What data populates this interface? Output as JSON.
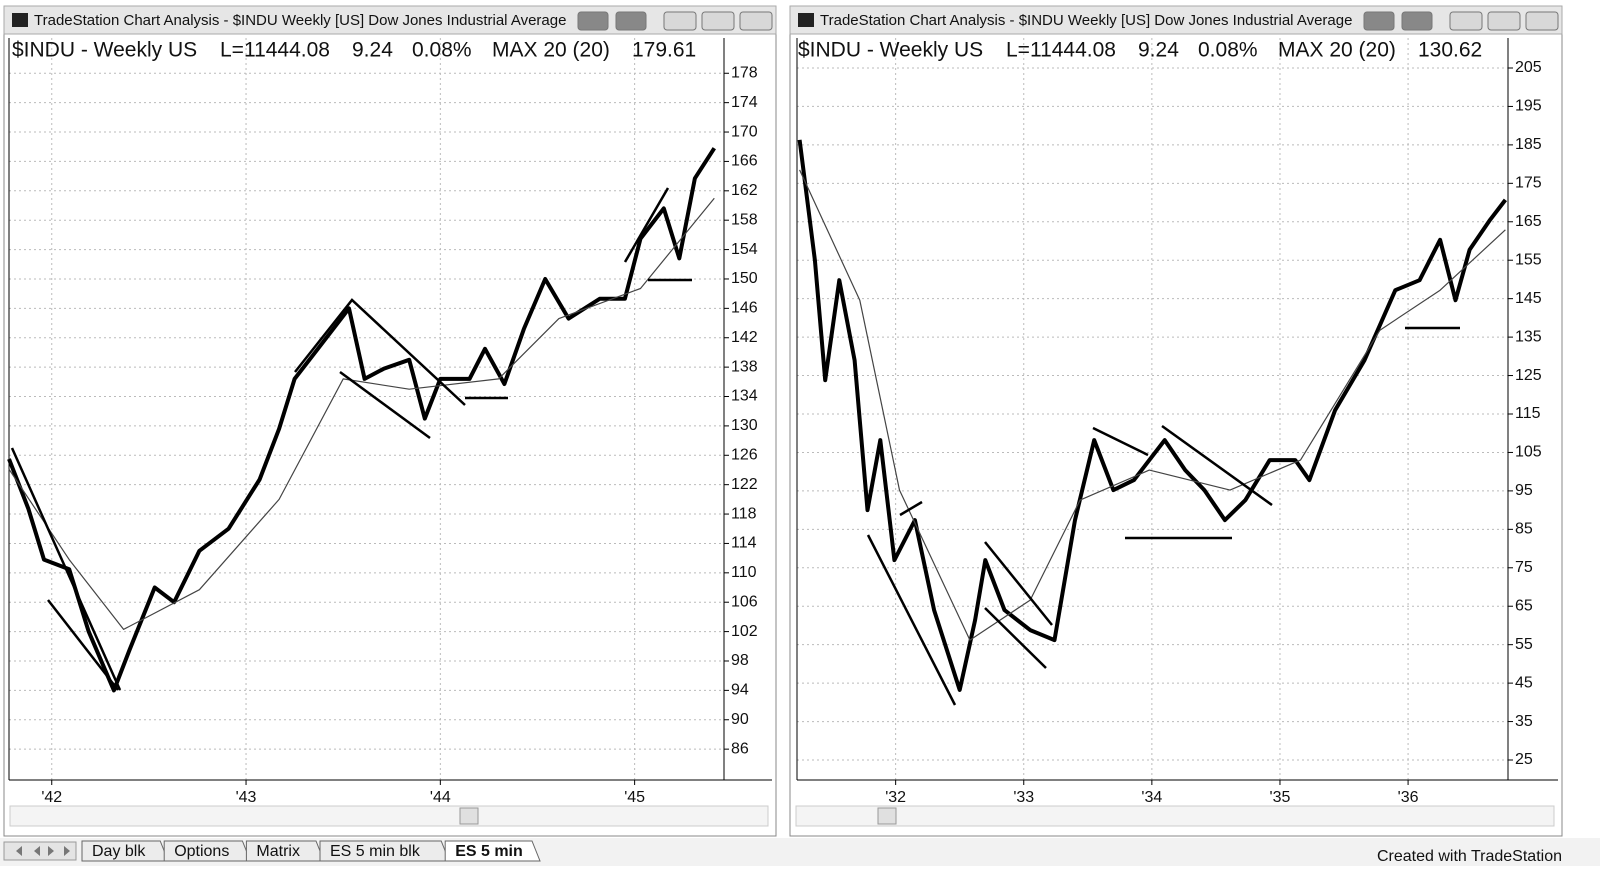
{
  "windows": [
    {
      "title": "TradeStation Chart Analysis - $INDU Weekly [US] Dow Jones Industrial Average",
      "header": {
        "symbol": "$INDU - Weekly US",
        "last": "L=11444.08",
        "change": "9.24",
        "percent": "0.08%",
        "indicator": "MAX 20 (20)",
        "indicator_value": "179.61"
      }
    },
    {
      "title": "TradeStation Chart Analysis - $INDU Weekly [US] Dow Jones Industrial Average",
      "header": {
        "symbol": "$INDU - Weekly US",
        "last": "L=11444.08",
        "change": "9.24",
        "percent": "0.08%",
        "indicator": "MAX 20 (20)",
        "indicator_value": "130.62"
      }
    }
  ],
  "chart_data": [
    {
      "type": "line",
      "xlim": [
        1941.78,
        1945.46
      ],
      "ylim": [
        81.8,
        182.8
      ],
      "xticks": [
        {
          "value": 1942,
          "label": "'42"
        },
        {
          "value": 1943,
          "label": "'43"
        },
        {
          "value": 1944,
          "label": "'44"
        },
        {
          "value": 1945,
          "label": "'45"
        }
      ],
      "yticks": [
        86,
        90,
        94,
        98,
        102,
        106,
        110,
        114,
        118,
        122,
        126,
        130,
        134,
        138,
        142,
        146,
        150,
        154,
        158,
        162,
        166,
        170,
        174,
        178
      ],
      "grid": true,
      "series": [
        {
          "color": "#000000",
          "x": [
            1941.78,
            1941.88,
            1941.96,
            1942.09,
            1942.19,
            1942.32,
            1942.4,
            1942.53,
            1942.63,
            1942.76,
            1942.91,
            1943.07,
            1943.17,
            1943.25,
            1943.37,
            1943.53,
            1943.61,
            1943.71,
            1943.84,
            1943.92,
            1944.0,
            1944.15,
            1944.23,
            1944.33,
            1944.43,
            1944.54,
            1944.66,
            1944.82,
            1944.95,
            1945.03,
            1945.15,
            1945.23,
            1945.31,
            1945.41
          ],
          "values": [
            125.5,
            118.7,
            111.8,
            110.5,
            102,
            94,
            99.5,
            108,
            106,
            113,
            116,
            122.7,
            129.6,
            136.4,
            140.5,
            146,
            136.4,
            137.8,
            139,
            131,
            136.4,
            136.4,
            140.5,
            135.7,
            143.2,
            150,
            144.6,
            147.3,
            147.3,
            155.5,
            159.6,
            152.8,
            163.7,
            167.8
          ]
        },
        {
          "color": "#444444",
          "x": [
            1941.78,
            1942.09,
            1942.37,
            1942.76,
            1943.17,
            1943.5,
            1943.84,
            1944.3,
            1944.61,
            1945.03,
            1945.41
          ],
          "values": [
            124.1,
            111.8,
            102.3,
            107.7,
            120,
            136.4,
            135,
            136.4,
            144.6,
            148.7,
            161
          ]
        }
      ]
    },
    {
      "type": "line",
      "xlim": [
        1931.23,
        1936.78
      ],
      "ylim": [
        19.8,
        212.8
      ],
      "xticks": [
        {
          "value": 1932,
          "label": "'32"
        },
        {
          "value": 1933,
          "label": "'33"
        },
        {
          "value": 1934,
          "label": "'34"
        },
        {
          "value": 1935,
          "label": "'35"
        },
        {
          "value": 1936,
          "label": "'36"
        }
      ],
      "yticks": [
        25,
        35,
        45,
        55,
        65,
        75,
        85,
        95,
        105,
        115,
        125,
        135,
        145,
        155,
        165,
        175,
        185,
        195,
        205
      ],
      "grid": true,
      "series": [
        {
          "color": "#000000",
          "x": [
            1931.25,
            1931.37,
            1931.45,
            1931.56,
            1931.68,
            1931.78,
            1931.88,
            1931.99,
            1932.15,
            1932.3,
            1932.5,
            1932.62,
            1932.7,
            1932.85,
            1933.05,
            1933.24,
            1933.4,
            1933.55,
            1933.7,
            1933.86,
            1934.1,
            1934.26,
            1934.41,
            1934.57,
            1934.73,
            1934.92,
            1935.12,
            1935.23,
            1935.43,
            1935.66,
            1935.9,
            1936.09,
            1936.25,
            1936.37,
            1936.48,
            1936.64,
            1936.76
          ],
          "values": [
            186.3,
            155,
            123.8,
            149.8,
            129,
            90,
            108.2,
            77,
            87.4,
            64,
            43.2,
            61.4,
            77,
            64,
            58.8,
            56.2,
            87.4,
            108.2,
            95.2,
            97.8,
            108.2,
            100.4,
            95.2,
            87.4,
            92.6,
            103,
            103,
            97.8,
            116,
            129,
            147.2,
            149.8,
            160.3,
            144.6,
            157.7,
            165.5,
            170.7
          ]
        },
        {
          "color": "#444444",
          "x": [
            1931.25,
            1931.72,
            1932.03,
            1932.58,
            1933.05,
            1933.44,
            1933.98,
            1934.61,
            1935.16,
            1935.78,
            1936.25,
            1936.76
          ],
          "values": [
            178.5,
            144.6,
            95.2,
            56.2,
            66.6,
            92.6,
            100.4,
            95.2,
            103,
            136.8,
            147.2,
            162.9
          ]
        }
      ]
    }
  ],
  "tabs": [
    "Day blk",
    "Options",
    "Matrix",
    "ES 5 min blk",
    "ES 5 min"
  ],
  "active_tab": 4,
  "footer": "Created with TradeStation"
}
